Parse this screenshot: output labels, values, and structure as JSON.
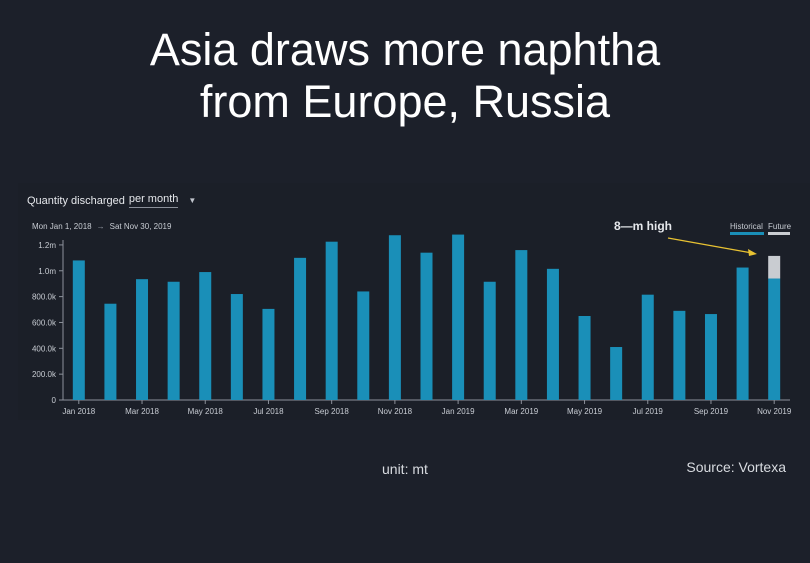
{
  "title": {
    "line1": "Asia draws more naphtha",
    "line2": "from Europe, Russia"
  },
  "selector": {
    "label": "Quantity discharged",
    "period": "per month"
  },
  "date_range": {
    "start": "Mon Jan 1, 2018",
    "end": "Sat Nov 30, 2019"
  },
  "annotation": "8—m high",
  "legend": {
    "historical": "Historical",
    "future": "Future"
  },
  "footer": {
    "unit": "unit: mt",
    "source": "Source: Vortexa"
  },
  "colors": {
    "historical": "#1a8fb8",
    "future": "#c9ccd1",
    "annotation_arrow": "#e8c232",
    "axis": "#8c919b",
    "tick_text": "#c8ccd3"
  },
  "chart_data": {
    "type": "bar",
    "stacked": true,
    "categories": [
      "Jan 2018",
      "Feb 2018",
      "Mar 2018",
      "Apr 2018",
      "May 2018",
      "Jun 2018",
      "Jul 2018",
      "Aug 2018",
      "Sep 2018",
      "Oct 2018",
      "Nov 2018",
      "Dec 2018",
      "Jan 2019",
      "Feb 2019",
      "Mar 2019",
      "Apr 2019",
      "May 2019",
      "Jun 2019",
      "Jul 2019",
      "Aug 2019",
      "Sep 2019",
      "Oct 2019",
      "Nov 2019"
    ],
    "x_tick_labels": [
      "Jan 2018",
      "Mar 2018",
      "May 2018",
      "Jul 2018",
      "Sep 2018",
      "Nov 2018",
      "Jan 2019",
      "Mar 2019",
      "May 2019",
      "Jul 2019",
      "Sep 2019",
      "Nov 2019"
    ],
    "series": [
      {
        "name": "Historical",
        "values": [
          1080000,
          745000,
          935000,
          915000,
          990000,
          820000,
          705000,
          1100000,
          1225000,
          840000,
          1275000,
          1140000,
          1280000,
          915000,
          1160000,
          1015000,
          650000,
          410000,
          815000,
          690000,
          665000,
          1025000,
          940000
        ]
      },
      {
        "name": "Future",
        "values": [
          0,
          0,
          0,
          0,
          0,
          0,
          0,
          0,
          0,
          0,
          0,
          0,
          0,
          0,
          0,
          0,
          0,
          0,
          0,
          0,
          0,
          0,
          175000
        ]
      }
    ],
    "yticks": [
      0,
      200000,
      400000,
      600000,
      800000,
      1000000,
      1200000
    ],
    "ytick_labels": [
      "0",
      "200.0k",
      "400.0k",
      "600.0k",
      "800.0k",
      "1.0m",
      "1.2m"
    ],
    "ylim": [
      0,
      1300000
    ],
    "legend_position": "top-right",
    "grid": false
  }
}
